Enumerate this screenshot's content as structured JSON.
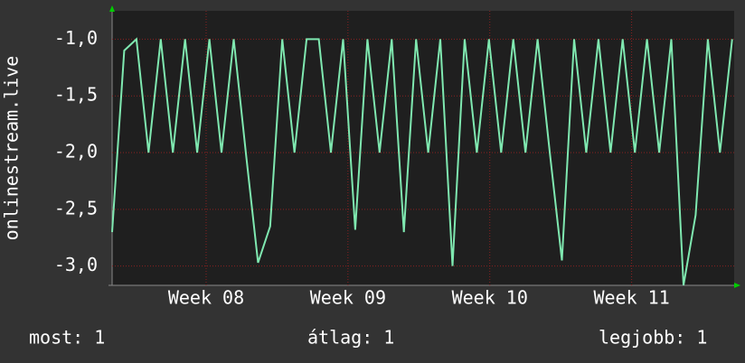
{
  "chart_data": {
    "type": "line",
    "y_label": "onlinestream.live",
    "x": [
      0,
      0.6,
      1.2,
      1.8,
      2.4,
      3,
      3.6,
      4.2,
      4.8,
      5.4,
      6,
      6.6,
      7.2,
      7.8,
      8.4,
      9,
      9.6,
      10.2,
      10.8,
      11.4,
      12,
      12.6,
      13.2,
      13.8,
      14.4,
      15,
      15.6,
      16.2,
      16.8,
      17.4,
      18,
      18.6,
      19.2,
      19.8,
      20.4,
      21,
      21.6,
      22.2,
      22.8,
      23.4,
      24,
      24.6,
      25.2,
      25.8,
      26.4,
      27,
      27.6,
      28.2,
      28.8,
      29.4,
      30,
      30.6
    ],
    "values": [
      -2.7,
      -1.1,
      -1.0,
      -2.0,
      -1.0,
      -2.0,
      -1.0,
      -2.0,
      -1.0,
      -2.0,
      -1.0,
      -2.0,
      -2.97,
      -2.65,
      -1.0,
      -2.0,
      -1.0,
      -1.0,
      -2.0,
      -1.0,
      -2.68,
      -1.0,
      -2.0,
      -1.0,
      -2.7,
      -1.0,
      -2.0,
      -1.0,
      -3.0,
      -1.0,
      -2.0,
      -1.0,
      -2.0,
      -1.0,
      -2.0,
      -1.0,
      -2.0,
      -2.95,
      -1.0,
      -2.0,
      -1.0,
      -2.0,
      -1.0,
      -2.0,
      -1.0,
      -2.0,
      -1.0,
      -3.17,
      -2.55,
      -1.0,
      -2.0,
      -1.0
    ],
    "color": "#7fe8b0",
    "xlim": [
      0,
      30.7
    ],
    "xticks": [
      {
        "value": 4.64,
        "label": "Week 08"
      },
      {
        "value": 11.64,
        "label": "Week 09"
      },
      {
        "value": 18.64,
        "label": "Week 10"
      },
      {
        "value": 25.64,
        "label": "Week 11"
      }
    ],
    "ylim": [
      -3.17,
      -0.75
    ],
    "yticks": [
      {
        "value": -1.0,
        "label": "-1,0"
      },
      {
        "value": -1.5,
        "label": "-1,5"
      },
      {
        "value": -2.0,
        "label": "-2,0"
      },
      {
        "value": -2.5,
        "label": "-2,5"
      },
      {
        "value": -3.0,
        "label": "-3,0"
      }
    ],
    "grid": true,
    "stats": [
      "most: 1",
      "átlag: 1",
      "legjobb: 1"
    ]
  }
}
